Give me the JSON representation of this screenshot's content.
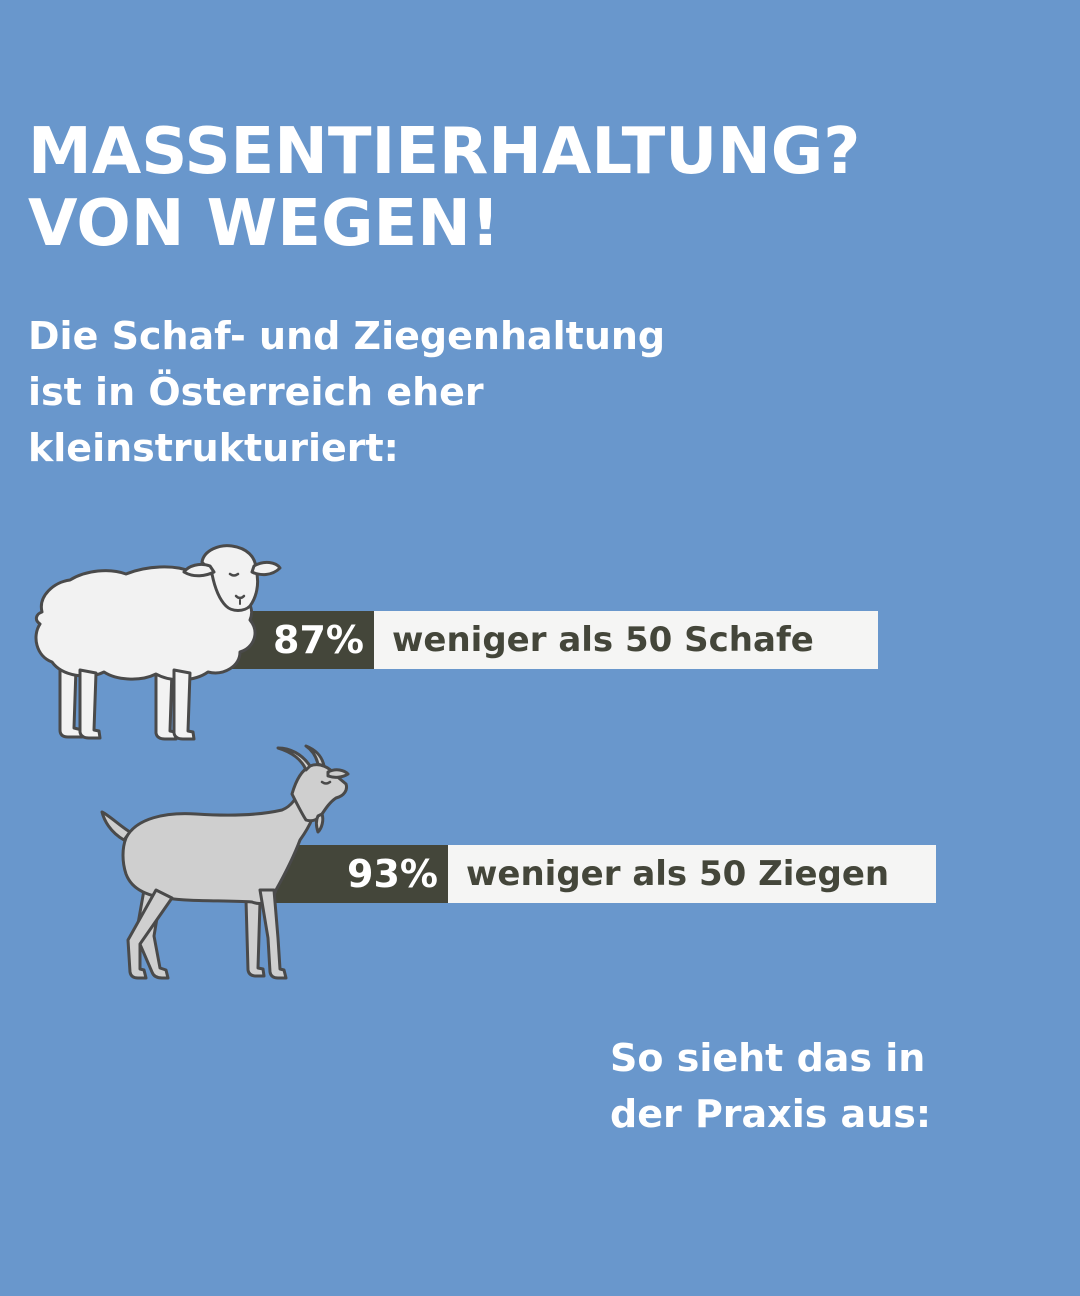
{
  "headline": {
    "line1": "MASSENTIERHALTUNG?",
    "line2": "VON WEGEN!"
  },
  "intro": {
    "line1": "Die Schaf- und Ziegenhaltung",
    "line2": "ist in Österreich eher",
    "line3": "kleinstrukturiert:"
  },
  "stats": [
    {
      "percent": "87%",
      "label": "weniger als 50 Schafe",
      "icon": "sheep-icon"
    },
    {
      "percent": "93%",
      "label": "weniger als 50 Ziegen",
      "icon": "goat-icon"
    }
  ],
  "outro": {
    "line1": "So sieht das in",
    "line2": "der Praxis aus:"
  },
  "colors": {
    "background": "#6997cc",
    "bar_dark": "#44463a",
    "bar_light": "#f5f5f4",
    "sheep": "#f2f2f2",
    "goat": "#cfcfcf",
    "outline": "#4a4a4a"
  }
}
